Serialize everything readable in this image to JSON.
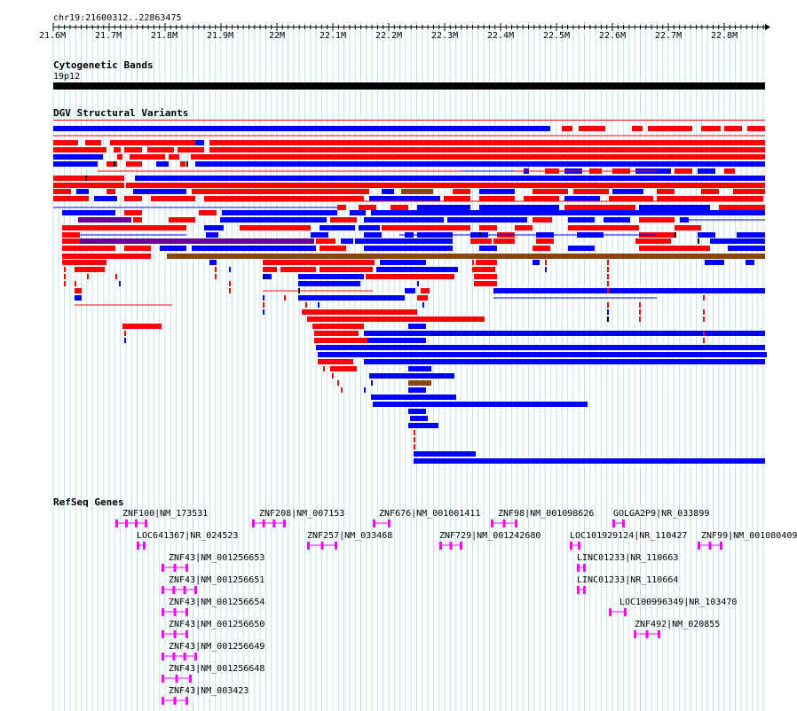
{
  "region": {
    "label": "chr19:21600312..22863475",
    "start": 21600312,
    "end": 22863475
  },
  "ruler": {
    "ticks": [
      {
        "label": "21.6M",
        "pos": 21600000
      },
      {
        "label": "21.7M",
        "pos": 21700000
      },
      {
        "label": "21.8M",
        "pos": 21800000
      },
      {
        "label": "21.9M",
        "pos": 21900000
      },
      {
        "label": "22M",
        "pos": 22000000
      },
      {
        "label": "22.1M",
        "pos": 22100000
      },
      {
        "label": "22.2M",
        "pos": 22200000
      },
      {
        "label": "22.3M",
        "pos": 22300000
      },
      {
        "label": "22.4M",
        "pos": 22400000
      },
      {
        "label": "22.5M",
        "pos": 22500000
      },
      {
        "label": "22.6M",
        "pos": 22600000
      },
      {
        "label": "22.7M",
        "pos": 22700000
      },
      {
        "label": "22.8M",
        "pos": 22800000
      }
    ]
  },
  "cytobands": {
    "title": "Cytogenetic Bands",
    "band_label": "19p12"
  },
  "dgv": {
    "title": "DGV Structural Variants",
    "colors": {
      "loss": "#ff0000",
      "gain": "#0000ff",
      "gain_loss": "#8b4513",
      "complex": "#660099"
    }
  },
  "refseq": {
    "title": "RefSeq Genes",
    "color": "#ff00ff",
    "genes": [
      {
        "label": "ZNF100|NM_173531"
      },
      {
        "label": "ZNF208|NM_007153"
      },
      {
        "label": "ZNF676|NM_001001411"
      },
      {
        "label": "ZNF98|NM_001098626"
      },
      {
        "label": "GOLGA2P9|NR_033899"
      },
      {
        "label": "LOC641367|NR_024523"
      },
      {
        "label": "ZNF257|NM_033468"
      },
      {
        "label": "ZNF729|NM_001242680"
      },
      {
        "label": "LOC101929124|NR_110427"
      },
      {
        "label": "ZNF99|NM_001080409"
      },
      {
        "label": "ZNF43|NM_001256653"
      },
      {
        "label": "LINC01233|NR_110663"
      },
      {
        "label": "ZNF43|NM_001256651"
      },
      {
        "label": "LINC01233|NR_110664"
      },
      {
        "label": "ZNF43|NM_001256654"
      },
      {
        "label": "LOC100996349|NR_103470"
      },
      {
        "label": "ZNF43|NM_001256650"
      },
      {
        "label": "ZNF492|NM_020855"
      },
      {
        "label": "ZNF43|NM_001256649"
      },
      {
        "label": "ZNF43|NM_001256648"
      },
      {
        "label": "ZNF43|NM_003423"
      }
    ]
  }
}
